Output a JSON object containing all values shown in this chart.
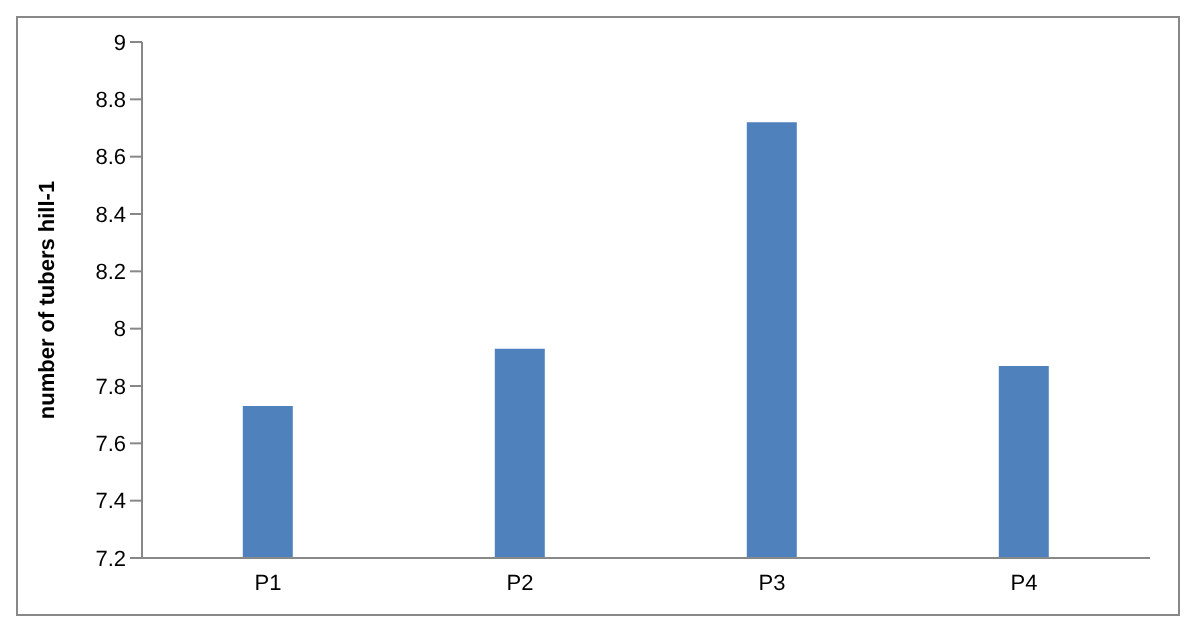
{
  "chart_data": {
    "type": "bar",
    "ylabel": "number of tubers hill-1",
    "categories": [
      "P1",
      "P2",
      "P3",
      "P4"
    ],
    "values": [
      7.73,
      7.93,
      8.72,
      7.87
    ],
    "color": "#4f81bd",
    "ylim": [
      7.2,
      9
    ],
    "yticks": [
      7.2,
      7.4,
      7.6,
      7.8,
      8,
      8.2,
      8.4,
      8.6,
      8.8,
      9
    ],
    "grid": false,
    "legend": false
  }
}
